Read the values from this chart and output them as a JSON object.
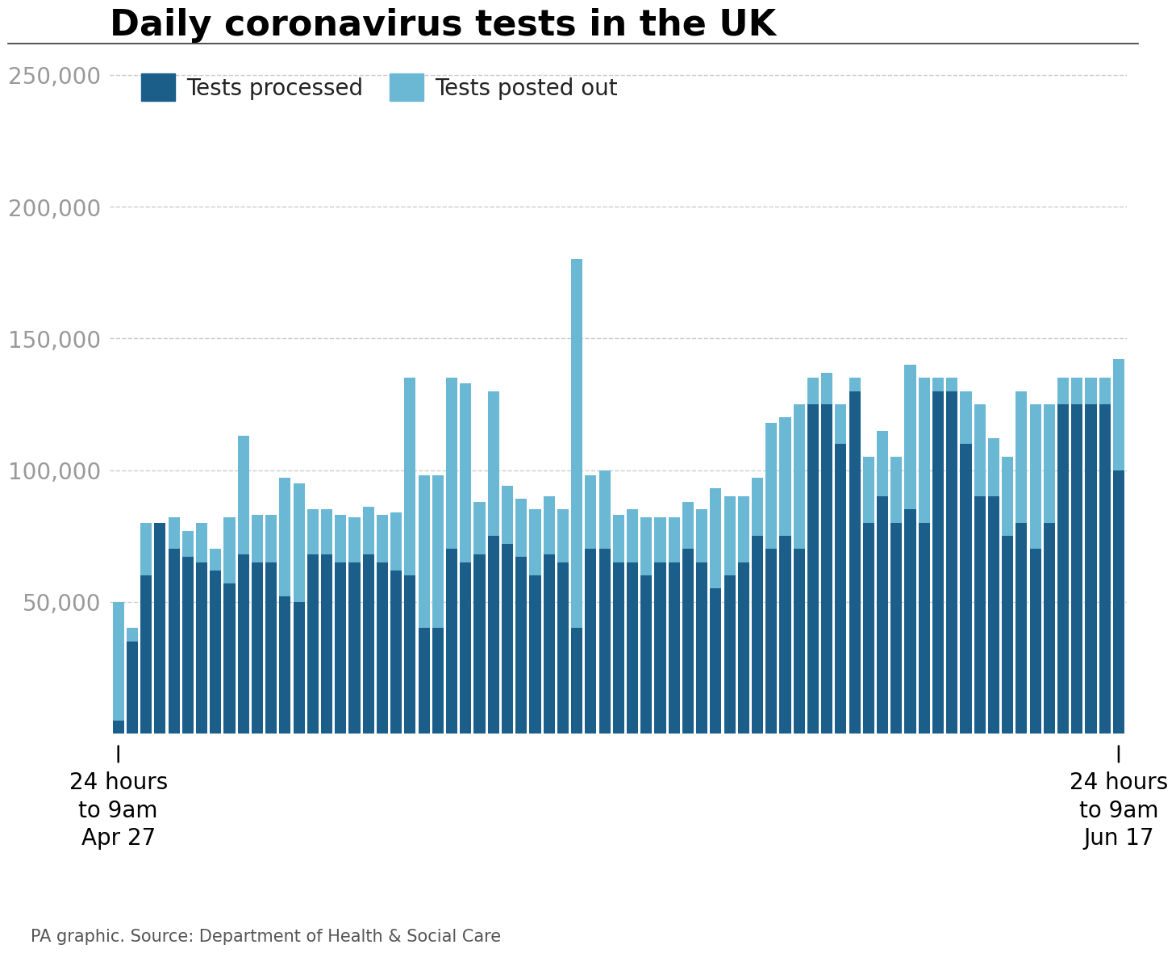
{
  "title": "Daily coronavirus tests in the UK",
  "source": "PA graphic. Source: Department of Health & Social Care",
  "color_processed": "#1b5e8a",
  "color_posted": "#6bb8d4",
  "background_color": "#ffffff",
  "ylim": [
    0,
    260000
  ],
  "yticks": [
    50000,
    100000,
    150000,
    200000,
    250000
  ],
  "legend_processed": "Tests processed",
  "legend_posted": "Tests posted out",
  "label_left": "24 hours\nto 9am\nApr 27",
  "label_right": "24 hours\nto 9am\nJun 17",
  "processed": [
    5000,
    35000,
    60000,
    80000,
    70000,
    67000,
    65000,
    62000,
    57000,
    68000,
    65000,
    65000,
    52000,
    50000,
    68000,
    68000,
    65000,
    65000,
    68000,
    65000,
    62000,
    60000,
    40000,
    40000,
    70000,
    65000,
    68000,
    75000,
    72000,
    67000,
    60000,
    68000,
    65000,
    40000,
    70000,
    70000,
    65000,
    65000,
    60000,
    65000,
    65000,
    70000,
    65000,
    55000,
    60000,
    65000,
    75000,
    70000,
    75000,
    70000,
    125000,
    125000,
    110000,
    130000,
    80000,
    90000,
    80000,
    85000,
    80000,
    130000,
    130000,
    110000,
    90000,
    90000,
    75000,
    80000,
    70000,
    80000,
    125000,
    125000,
    125000,
    125000,
    100000
  ],
  "posted": [
    45000,
    5000,
    20000,
    0,
    12000,
    10000,
    15000,
    8000,
    25000,
    45000,
    18000,
    18000,
    45000,
    45000,
    17000,
    17000,
    18000,
    17000,
    18000,
    18000,
    22000,
    75000,
    58000,
    58000,
    65000,
    68000,
    20000,
    55000,
    22000,
    22000,
    25000,
    22000,
    20000,
    140000,
    28000,
    30000,
    18000,
    20000,
    22000,
    17000,
    17000,
    18000,
    20000,
    38000,
    30000,
    25000,
    22000,
    48000,
    45000,
    55000,
    10000,
    12000,
    15000,
    5000,
    25000,
    25000,
    25000,
    55000,
    55000,
    5000,
    5000,
    20000,
    35000,
    22000,
    30000,
    50000,
    55000,
    45000,
    10000,
    10000,
    10000,
    10000,
    42000
  ]
}
